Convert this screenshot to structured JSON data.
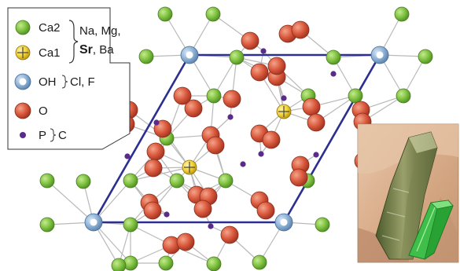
{
  "legend": {
    "ca2": "Ca2",
    "ca1": "Ca1",
    "substituents_line1": "Na, Mg,",
    "substituents_sr": "Sr",
    "substituents_line2_rest": ", Ba",
    "oh": "OH",
    "oh_substituents": "Cl, F",
    "o": "O",
    "p": "P",
    "p_substituents": "C"
  },
  "colors": {
    "ca2_fill": "#7fc241",
    "ca1_fill": "#f2d23a",
    "oh_fill": "#8fb3d6",
    "o_fill": "#d9583c",
    "p_fill": "#5b2b8c",
    "cell_line": "#2c2f8f",
    "bond_line": "#b8b8b8"
  },
  "photo": {
    "description_icons": [
      "mineral-crystal-photo",
      "green-crystal-prism-icon"
    ]
  }
}
